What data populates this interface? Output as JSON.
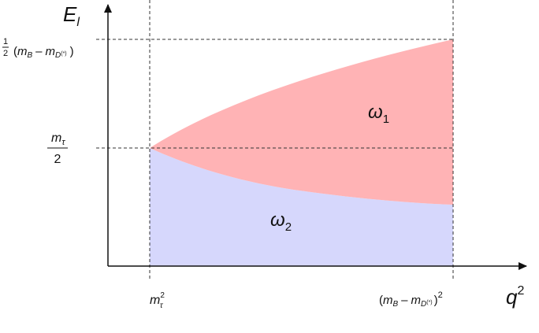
{
  "axes": {
    "y_label": {
      "base": "E",
      "sub": "l"
    },
    "x_label": {
      "base": "q",
      "sup": "2"
    }
  },
  "y_ticks": {
    "upper": {
      "frac_num": "1",
      "frac_den": "2",
      "open": "(",
      "m1": "m",
      "m1_sub": "B",
      "minus": "–",
      "m2": "m",
      "m2_sub": "D",
      "m2_subsup": "(*)",
      "close": ")"
    },
    "middle": {
      "num": "m",
      "num_sub": "τ",
      "den": "2"
    }
  },
  "x_ticks": {
    "left": {
      "base": "m",
      "sup": "2",
      "sub": "τ"
    },
    "right": {
      "open": "(",
      "m1": "m",
      "m1_sub": "B",
      "minus": "–",
      "m2": "m",
      "m2_sub": "D",
      "m2_subsup": "(*)",
      "close": ")",
      "sup": "2"
    }
  },
  "regions": {
    "upper": {
      "symbol": "ω",
      "sub": "1",
      "fill": "#ffb3b5",
      "text_color": "#d4142a"
    },
    "lower": {
      "symbol": "ω",
      "sub": "2",
      "fill": "#d6d7fc",
      "text_color": "#1c1c80"
    }
  }
}
